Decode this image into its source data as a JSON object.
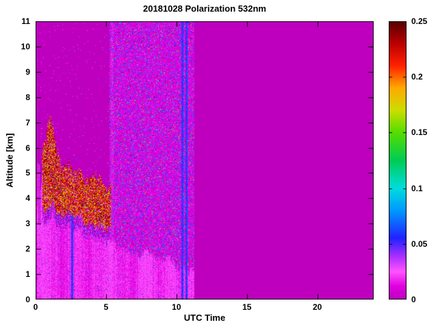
{
  "chart_data": {
    "type": "heatmap",
    "title": "20181028 Polarization 532nm",
    "xlabel": "UTC Time",
    "ylabel": "Altitude [km]",
    "xlim": [
      0,
      24
    ],
    "ylim": [
      0,
      11
    ],
    "xticks": [
      0,
      5,
      10,
      15,
      20
    ],
    "xtick_labels": [
      "0",
      "5",
      "10",
      "15",
      "20"
    ],
    "yticks": [
      0,
      1,
      2,
      3,
      4,
      5,
      6,
      7,
      8,
      9,
      10,
      11
    ],
    "ytick_labels": [
      "0",
      "1",
      "2",
      "3",
      "4",
      "5",
      "6",
      "7",
      "8",
      "9",
      "10",
      "11"
    ],
    "colorbar": {
      "min": 0,
      "max": 0.25,
      "ticks": [
        0,
        0.05,
        0.1,
        0.15,
        0.2,
        0.25
      ],
      "tick_labels": [
        "0",
        "0.05",
        "0.1",
        "0.15",
        "0.2",
        "0.25"
      ]
    },
    "colormap": [
      {
        "v": 0.0,
        "c": "#BE00BE"
      },
      {
        "v": 0.012,
        "c": "#E000E0"
      },
      {
        "v": 0.025,
        "c": "#FF55FF"
      },
      {
        "v": 0.038,
        "c": "#B030FF"
      },
      {
        "v": 0.055,
        "c": "#2222FF"
      },
      {
        "v": 0.08,
        "c": "#0099FF"
      },
      {
        "v": 0.1,
        "c": "#00DDDD"
      },
      {
        "v": 0.125,
        "c": "#00CC55"
      },
      {
        "v": 0.15,
        "c": "#55DD00"
      },
      {
        "v": 0.17,
        "c": "#CCDD00"
      },
      {
        "v": 0.19,
        "c": "#FFAA00"
      },
      {
        "v": 0.21,
        "c": "#FF2200"
      },
      {
        "v": 0.23,
        "c": "#BB0000"
      },
      {
        "v": 0.25,
        "c": "#550000"
      }
    ],
    "features": {
      "data_end_utc": 11.25,
      "background_value": 0,
      "boundary_layer": {
        "top_start_km": 3.05,
        "flat_until_utc": 0.9,
        "top_end_km": 1.0,
        "end_utc": 11.1,
        "noise_km": 0.4,
        "base_value": 0.005,
        "streak_value": 0.016
      },
      "depol_layer": {
        "start_utc": 0.45,
        "end_utc": 5.35,
        "peak_utc": 1.1,
        "peak_top_km": 7.0,
        "top_base_km": 5.5,
        "top_slope": 0.24,
        "gap_km": 0.5,
        "value_min": 0.15,
        "value_max": 0.25
      },
      "speckle_region": {
        "start_utc": 5.25,
        "end_utc": 11.25,
        "density": 0.22,
        "strong_density": 0.035
      },
      "stripes": [
        {
          "utc": 5.45,
          "width_utc": 0.22,
          "type": "purple"
        },
        {
          "utc": 10.42,
          "width_utc": 0.16,
          "type": "dark"
        },
        {
          "utc": 10.72,
          "width_utc": 0.12,
          "type": "dark"
        },
        {
          "utc": 2.6,
          "width_utc": 0.1,
          "type": "dark",
          "max_km": 3.3
        }
      ]
    }
  }
}
